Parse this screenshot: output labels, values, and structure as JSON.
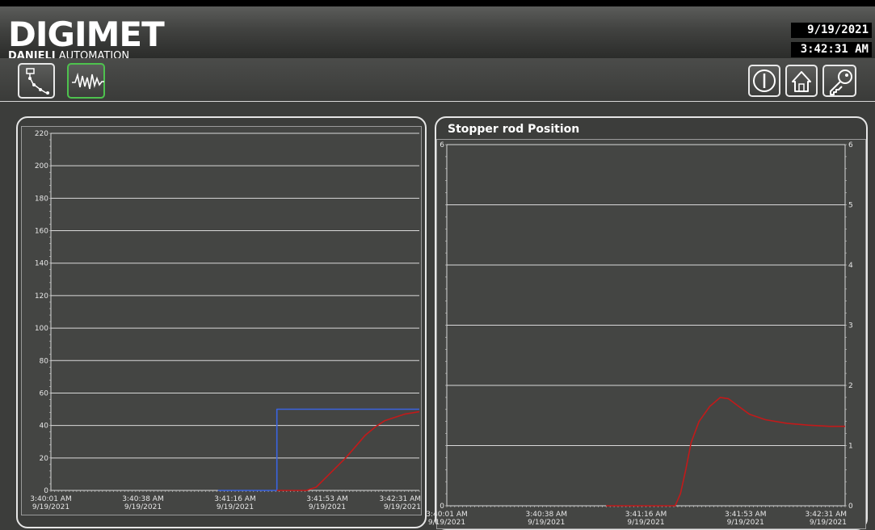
{
  "header": {
    "logo": "DIGIMET",
    "company_bold": "DANIELI",
    "company_rest": " AUTOMATION",
    "date": "9/19/2021",
    "time": "3:42:31 AM"
  },
  "toolbar": {
    "left_buttons": [
      {
        "icon": "process-flow-icon",
        "active": false
      },
      {
        "icon": "trend-waveform-icon",
        "active": true
      }
    ],
    "right_buttons": [
      {
        "icon": "power-icon"
      },
      {
        "icon": "home-icon"
      },
      {
        "icon": "key-icon"
      }
    ]
  },
  "colors": {
    "setpoint": "#3a63e0",
    "actual": "#c21a1a",
    "active_border": "#4ec24e"
  },
  "chart_data": [
    {
      "type": "line",
      "title": "",
      "ylim": [
        0,
        220
      ],
      "y_ticks": [
        0,
        20,
        40,
        60,
        80,
        100,
        120,
        140,
        160,
        180,
        200,
        220
      ],
      "x_ticks": [
        {
          "time": "3:40:01 AM",
          "date": "9/19/2021"
        },
        {
          "time": "3:40:38 AM",
          "date": "9/19/2021"
        },
        {
          "time": "3:41:16 AM",
          "date": "9/19/2021"
        },
        {
          "time": "3:41:53 AM",
          "date": "9/19/2021"
        },
        {
          "time": "3:42:31 AM",
          "date": "9/19/2021"
        }
      ],
      "x_range_seconds": [
        0,
        150
      ],
      "grid": true,
      "series": [
        {
          "color": "#3a63e0",
          "points": [
            [
              68,
              0
            ],
            [
              92,
              0
            ],
            [
              92,
              50
            ],
            [
              150,
              50
            ]
          ]
        },
        {
          "color": "#c21a1a",
          "points": [
            [
              92,
              0
            ],
            [
              104,
              0
            ],
            [
              108,
              2
            ],
            [
              112,
              8
            ],
            [
              116,
              14
            ],
            [
              120,
              20
            ],
            [
              124,
              27
            ],
            [
              128,
              34
            ],
            [
              132,
              39
            ],
            [
              136,
              43
            ],
            [
              140,
              45
            ],
            [
              144,
              47
            ],
            [
              148,
              48
            ],
            [
              150,
              48.5
            ]
          ]
        }
      ]
    },
    {
      "type": "line",
      "title": "Stopper rod Position",
      "ylim": [
        0,
        6
      ],
      "y_ticks": [
        0,
        1,
        2,
        3,
        4,
        5,
        6
      ],
      "y_ticks_left": [
        0,
        6
      ],
      "x_ticks": [
        {
          "time": "3:40:01 AM",
          "date": "9/19/2021"
        },
        {
          "time": "3:40:38 AM",
          "date": "9/19/2021"
        },
        {
          "time": "3:41:16 AM",
          "date": "9/19/2021"
        },
        {
          "time": "3:41:53 AM",
          "date": "9/19/2021"
        },
        {
          "time": "3:42:31 AM",
          "date": "9/19/2021"
        }
      ],
      "x_range_seconds": [
        0,
        150
      ],
      "grid": true,
      "series": [
        {
          "color": "#c21a1a",
          "points": [
            [
              60,
              0
            ],
            [
              86,
              0
            ],
            [
              88,
              0.2
            ],
            [
              90,
              0.6
            ],
            [
              92,
              1.05
            ],
            [
              95,
              1.4
            ],
            [
              99,
              1.65
            ],
            [
              103,
              1.8
            ],
            [
              106,
              1.78
            ],
            [
              110,
              1.65
            ],
            [
              114,
              1.52
            ],
            [
              120,
              1.43
            ],
            [
              128,
              1.37
            ],
            [
              136,
              1.34
            ],
            [
              144,
              1.32
            ],
            [
              150,
              1.32
            ]
          ]
        }
      ]
    }
  ]
}
